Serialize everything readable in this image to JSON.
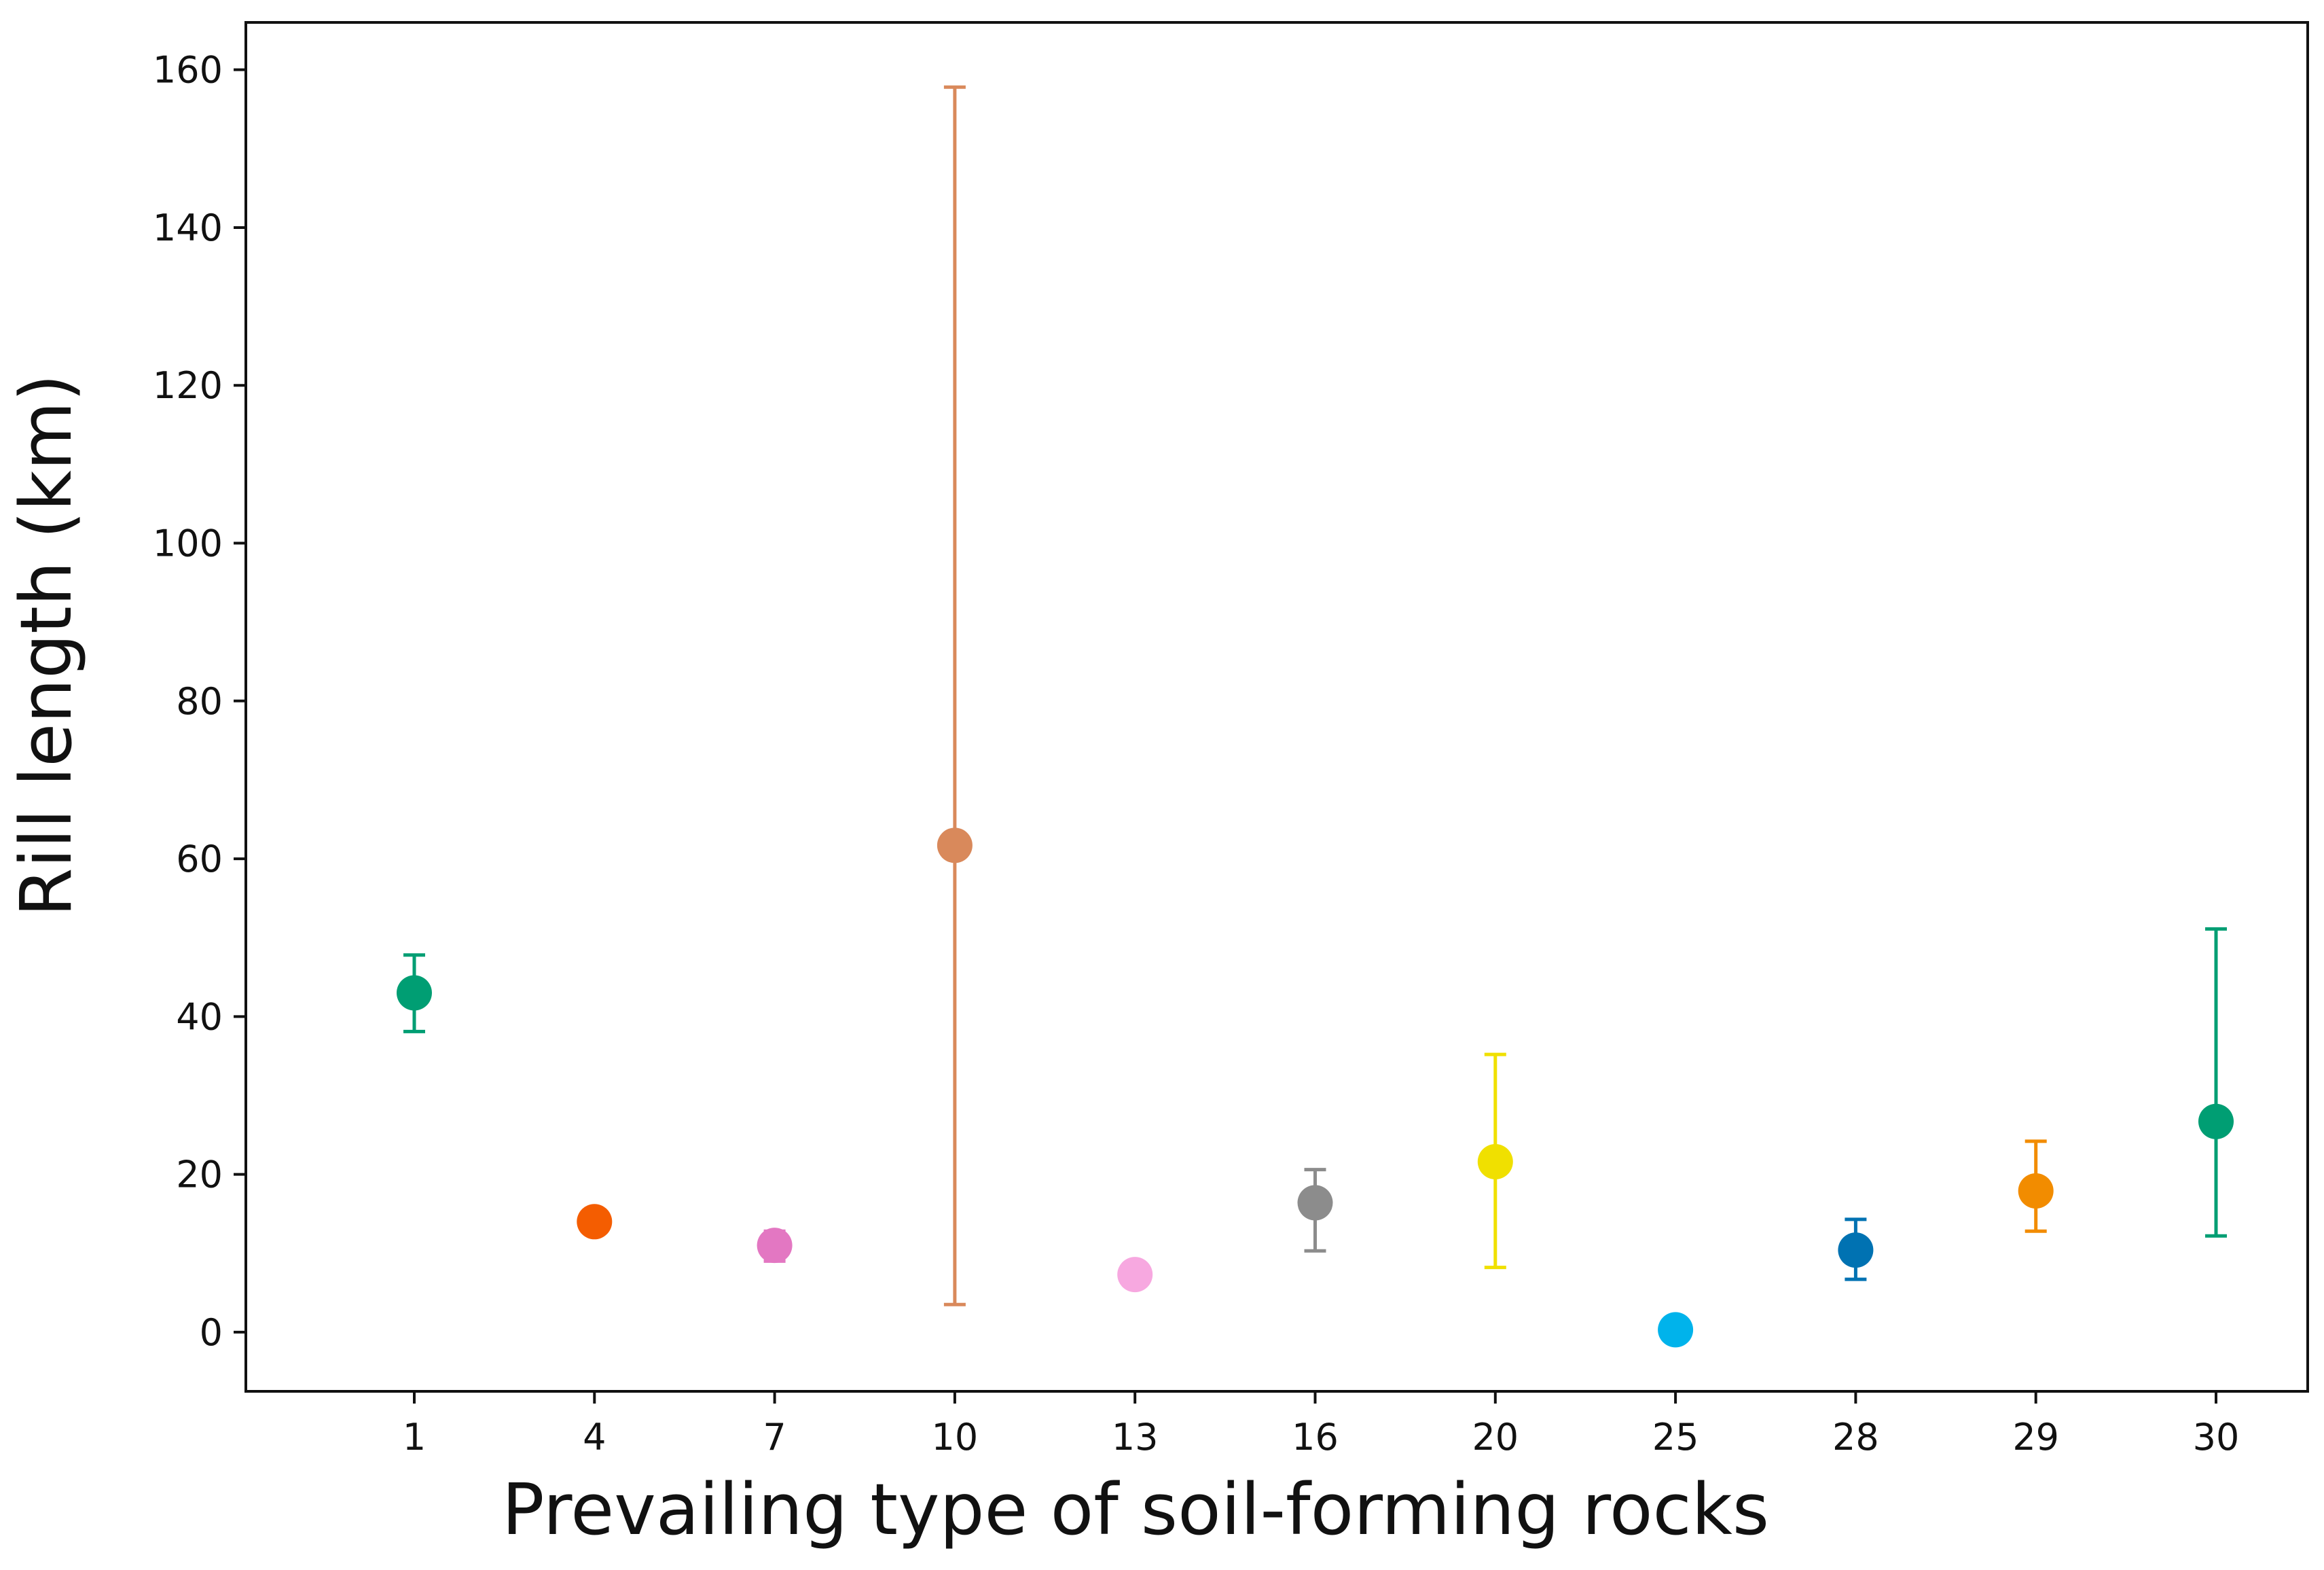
{
  "chart_data": {
    "type": "scatter",
    "title": "",
    "xlabel": "Prevailing type of soil-forming rocks",
    "ylabel": "Rill length (km)",
    "categories": [
      "1",
      "4",
      "7",
      "10",
      "13",
      "16",
      "20",
      "25",
      "28",
      "29",
      "30"
    ],
    "ylim": [
      -7.5,
      166
    ],
    "yticks": [
      0,
      20,
      40,
      60,
      80,
      100,
      120,
      140,
      160
    ],
    "grid": false,
    "points": [
      {
        "category": "1",
        "y": 43.0,
        "err_low": 38.1,
        "err_high": 47.8,
        "color": "#009E73"
      },
      {
        "category": "4",
        "y": 14.0,
        "err_low": 12.5,
        "err_high": 15.5,
        "color": "#F45D01"
      },
      {
        "category": "7",
        "y": 11.0,
        "err_low": 9.0,
        "err_high": 12.8,
        "color": "#E377C2"
      },
      {
        "category": "10",
        "y": 61.7,
        "err_low": 3.5,
        "err_high": 157.8,
        "color": "#D9895B"
      },
      {
        "category": "13",
        "y": 7.3,
        "err_low": 7.3,
        "err_high": 7.3,
        "color": "#F7A8E0"
      },
      {
        "category": "16",
        "y": 16.4,
        "err_low": 10.3,
        "err_high": 20.6,
        "color": "#8C8C8C"
      },
      {
        "category": "20",
        "y": 21.6,
        "err_low": 8.2,
        "err_high": 35.2,
        "color": "#F0E000"
      },
      {
        "category": "25",
        "y": 0.3,
        "err_low": 0.3,
        "err_high": 0.3,
        "color": "#00B3EB"
      },
      {
        "category": "28",
        "y": 10.4,
        "err_low": 6.7,
        "err_high": 14.3,
        "color": "#0072B2"
      },
      {
        "category": "29",
        "y": 17.9,
        "err_low": 12.8,
        "err_high": 24.2,
        "color": "#F28C00"
      },
      {
        "category": "30",
        "y": 26.7,
        "err_low": 12.2,
        "err_high": 51.1,
        "color": "#009E73"
      }
    ]
  }
}
